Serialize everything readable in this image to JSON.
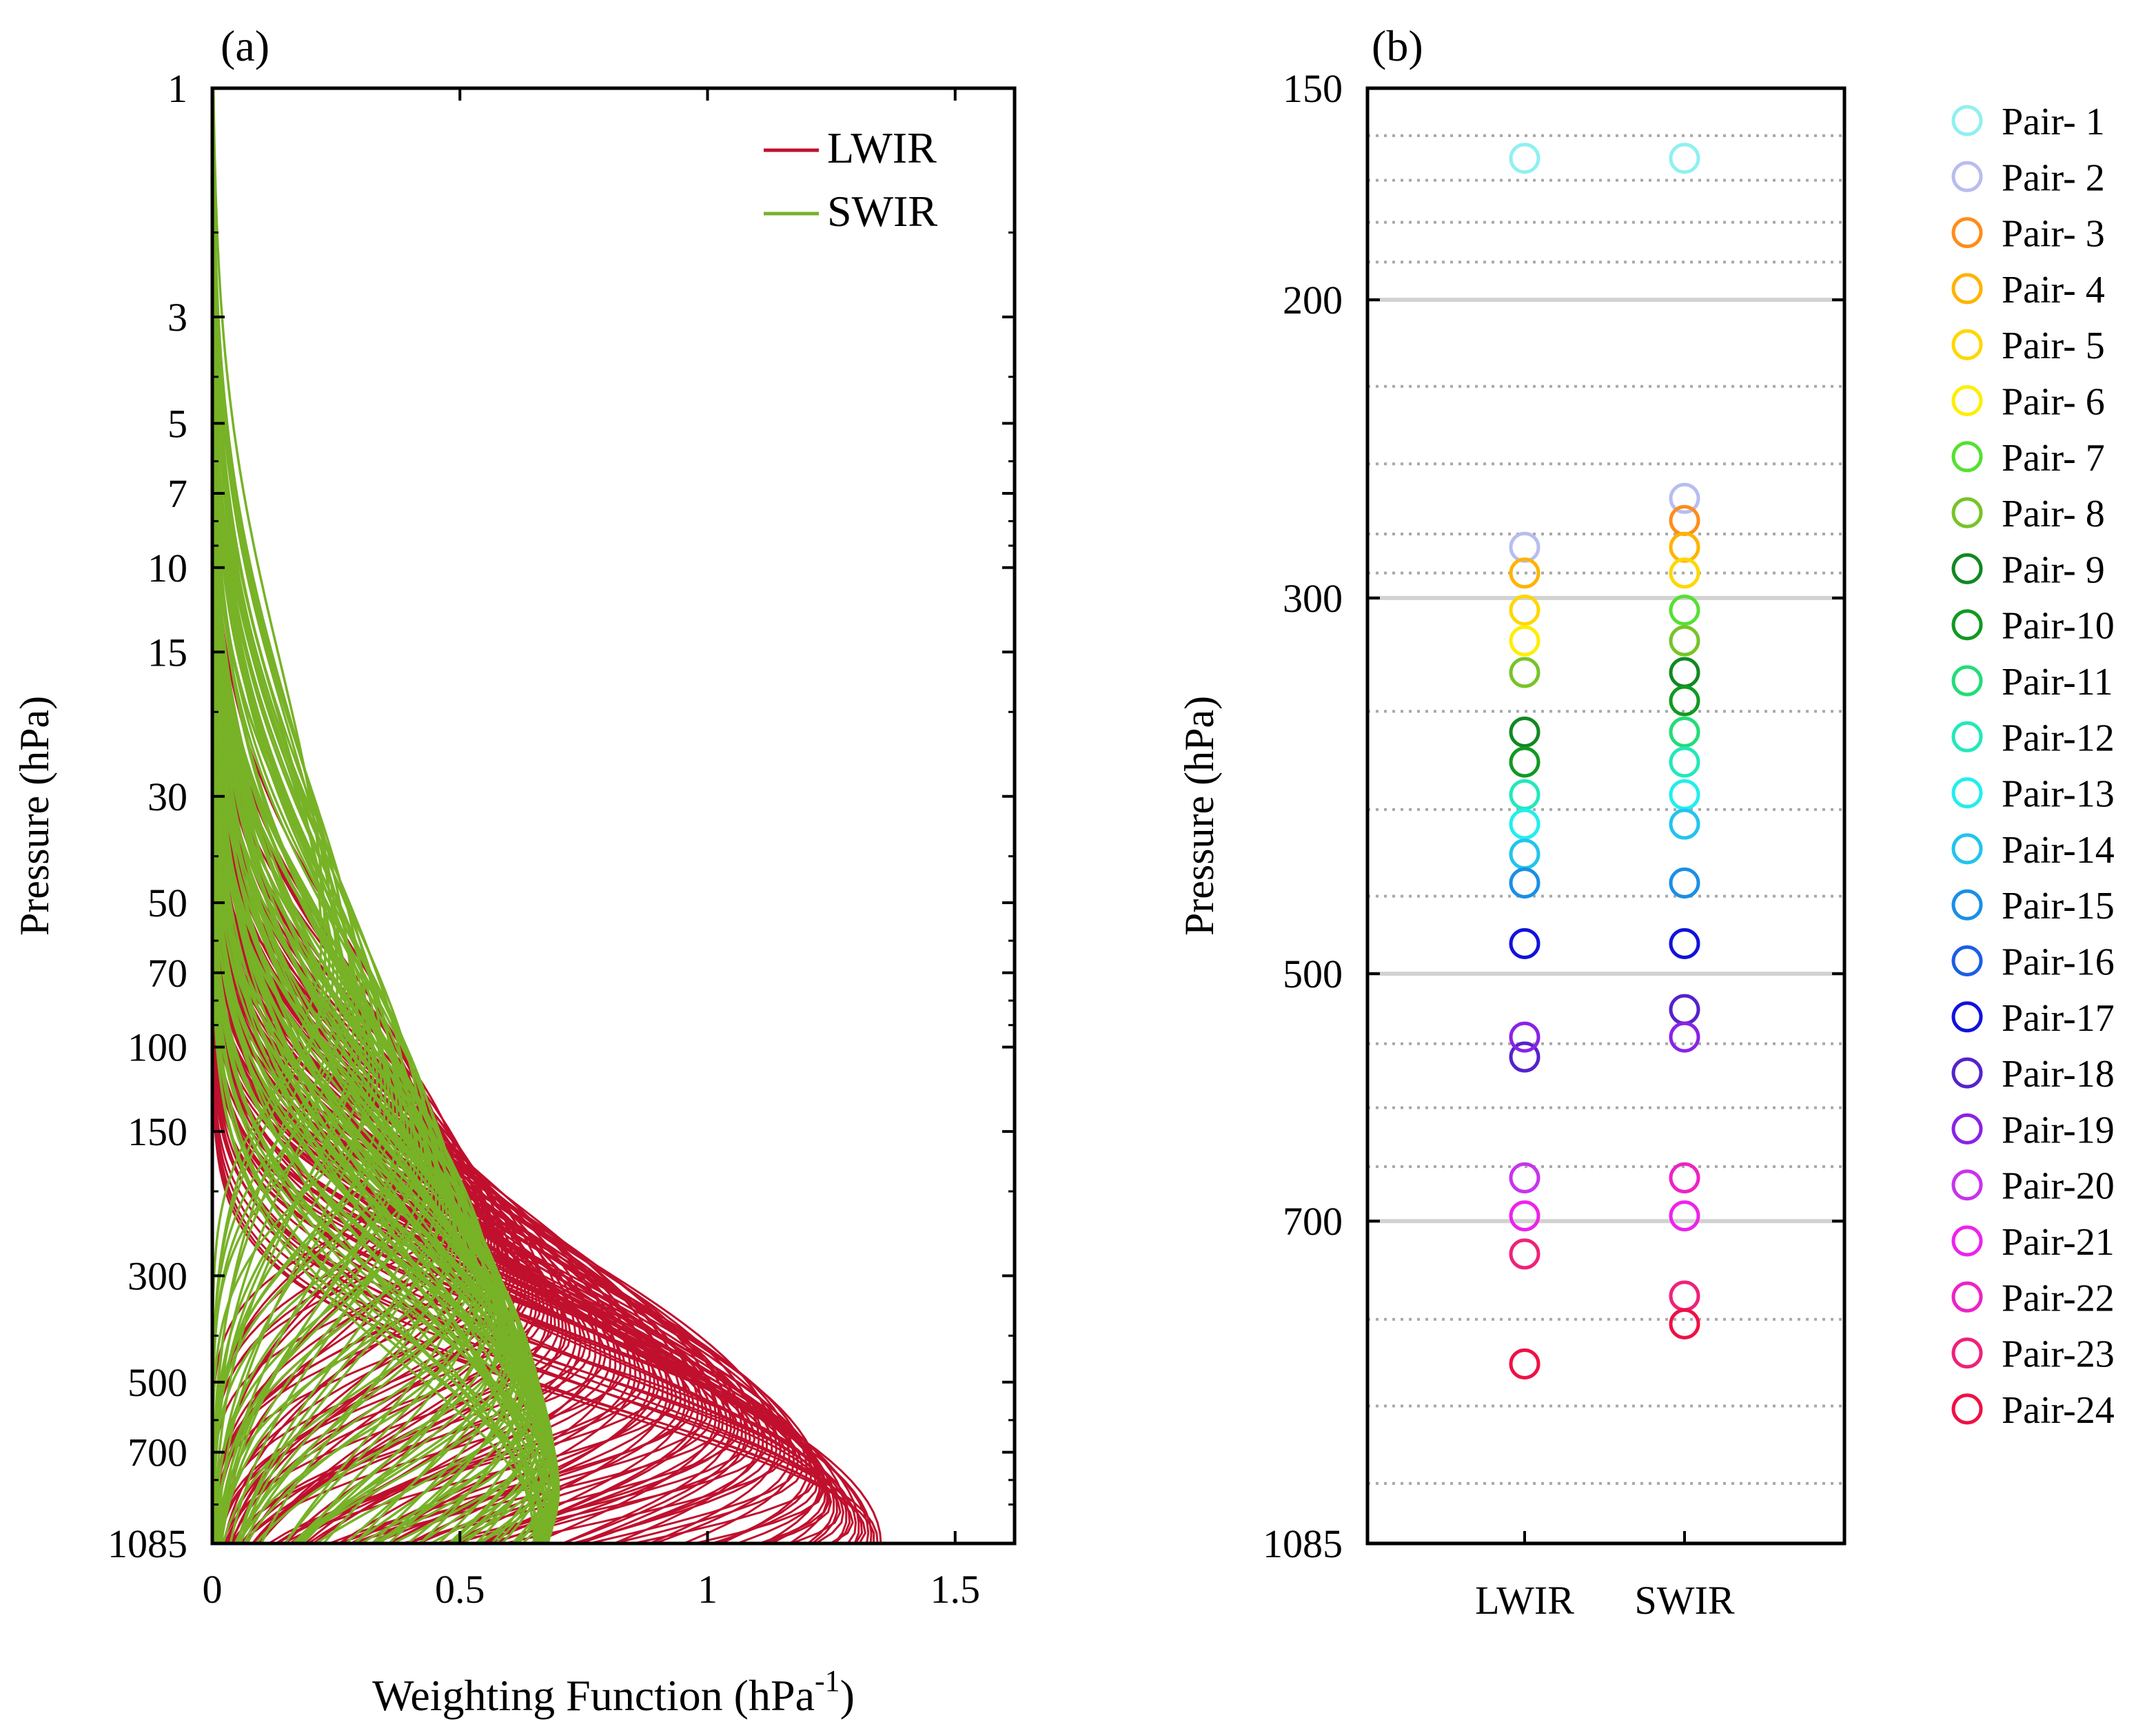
{
  "chart_data": [
    {
      "panel_label": "(a)",
      "type": "line",
      "xlabel": "Weighting Function (hPa",
      "xlabel_sup": "-1",
      "xlabel_close": ")",
      "ylabel": "Pressure (hPa)",
      "xlim": [
        0,
        1.62
      ],
      "ylim": [
        1,
        1085
      ],
      "y_scale": "log (inverted, 1 at top)",
      "xticks": [
        0,
        0.5,
        1,
        1.5
      ],
      "xtick_labels": [
        "0",
        "0.5",
        "1",
        "1.5"
      ],
      "yticks": [
        1,
        3,
        5,
        7,
        10,
        15,
        30,
        50,
        70,
        100,
        150,
        300,
        500,
        700,
        1085
      ],
      "ytick_labels": [
        "1",
        "3",
        "5",
        "7",
        "10",
        "15",
        "30",
        "50",
        "70",
        "100",
        "150",
        "300",
        "500",
        "700",
        "1085"
      ],
      "legend": [
        {
          "label": "LWIR",
          "color": "#c0102e"
        },
        {
          "label": "SWIR",
          "color": "#77b227"
        }
      ],
      "legend_position": "top-right",
      "series": [
        {
          "name": "LWIR",
          "color": "#c0102e",
          "description_of_curves": "many channel weighting functions; peaks between ~150 and 1085 hPa, max values up to ~1.35",
          "peak_pressures": [
            150,
            200,
            250,
            300,
            350,
            400,
            450,
            500,
            550,
            600,
            650,
            700,
            800,
            900,
            1000,
            1085
          ],
          "peak_values": [
            0.42,
            0.48,
            0.55,
            0.6,
            0.66,
            0.72,
            0.8,
            0.88,
            0.95,
            1.02,
            1.08,
            1.15,
            1.22,
            1.25,
            1.3,
            1.35
          ]
        },
        {
          "name": "SWIR",
          "color": "#77b227",
          "description_of_curves": "many channel weighting functions; peaks between ~60 and 1085 hPa, max values up to ~0.70",
          "peak_pressures": [
            60,
            100,
            150,
            200,
            300,
            400,
            500,
            600,
            700,
            850,
            1000,
            1085
          ],
          "peak_values": [
            0.22,
            0.3,
            0.38,
            0.45,
            0.52,
            0.58,
            0.62,
            0.66,
            0.68,
            0.7,
            0.68,
            0.65
          ]
        }
      ]
    },
    {
      "panel_label": "(b)",
      "type": "scatter",
      "ylabel": "Pressure (hPa)",
      "ylim": [
        150,
        1085
      ],
      "y_scale": "log (inverted)",
      "yticks": [
        150,
        200,
        300,
        500,
        700,
        1085
      ],
      "ytick_labels": [
        "150",
        "200",
        "300",
        "500",
        "700",
        "1085"
      ],
      "solid_gridlines": [
        200,
        300,
        500,
        700,
        1085
      ],
      "dotted_gridlines": [
        160,
        170,
        180,
        190,
        225,
        250,
        275,
        290,
        350,
        400,
        450,
        550,
        600,
        650,
        800,
        900,
        1000
      ],
      "categories": [
        "LWIR",
        "SWIR"
      ],
      "marker": "open circle",
      "legend_position": "right, outside",
      "pairs": [
        {
          "name": "Pair- 1",
          "color": "#8ff0f0",
          "LWIR": 165,
          "SWIR": 165
        },
        {
          "name": "Pair- 2",
          "color": "#b8bdf0",
          "LWIR": 280,
          "SWIR": 262
        },
        {
          "name": "Pair- 3",
          "color": "#ff8c1a",
          "LWIR": null,
          "SWIR": 270
        },
        {
          "name": "Pair- 4",
          "color": "#ffb300",
          "LWIR": 290,
          "SWIR": 280
        },
        {
          "name": "Pair- 5",
          "color": "#ffd700",
          "LWIR": 305,
          "SWIR": 290
        },
        {
          "name": "Pair- 6",
          "color": "#ffee00",
          "LWIR": 318,
          "SWIR": null
        },
        {
          "name": "Pair- 7",
          "color": "#55e033",
          "LWIR": null,
          "SWIR": 305
        },
        {
          "name": "Pair- 8",
          "color": "#77c427",
          "LWIR": 332,
          "SWIR": 318
        },
        {
          "name": "Pair- 9",
          "color": "#118822",
          "LWIR": 360,
          "SWIR": 332
        },
        {
          "name": "Pair-10",
          "color": "#119922",
          "LWIR": 375,
          "SWIR": 345
        },
        {
          "name": "Pair-11",
          "color": "#22dd77",
          "LWIR": null,
          "SWIR": 360
        },
        {
          "name": "Pair-12",
          "color": "#22e8bb",
          "LWIR": 392,
          "SWIR": 375
        },
        {
          "name": "Pair-13",
          "color": "#22eeee",
          "LWIR": 408,
          "SWIR": 392
        },
        {
          "name": "Pair-14",
          "color": "#22c4ee",
          "LWIR": 425,
          "SWIR": 408
        },
        {
          "name": "Pair-15",
          "color": "#1a8fe6",
          "LWIR": 442,
          "SWIR": 442
        },
        {
          "name": "Pair-16",
          "color": "#1a5ee6",
          "LWIR": null,
          "SWIR": null
        },
        {
          "name": "Pair-17",
          "color": "#1111dd",
          "LWIR": 480,
          "SWIR": 480
        },
        {
          "name": "Pair-18",
          "color": "#5522cc",
          "LWIR": 560,
          "SWIR": 525
        },
        {
          "name": "Pair-19",
          "color": "#8a22e6",
          "LWIR": 545,
          "SWIR": 545
        },
        {
          "name": "Pair-20",
          "color": "#c833ee",
          "LWIR": 660,
          "SWIR": null
        },
        {
          "name": "Pair-21",
          "color": "#ee22ee",
          "LWIR": 695,
          "SWIR": 695
        },
        {
          "name": "Pair-22",
          "color": "#ee22c4",
          "LWIR": null,
          "SWIR": 660
        },
        {
          "name": "Pair-23",
          "color": "#ee227a",
          "LWIR": 732,
          "SWIR": 775
        },
        {
          "name": "Pair-24",
          "color": "#ee1144",
          "LWIR": 850,
          "SWIR": 805
        }
      ]
    }
  ]
}
